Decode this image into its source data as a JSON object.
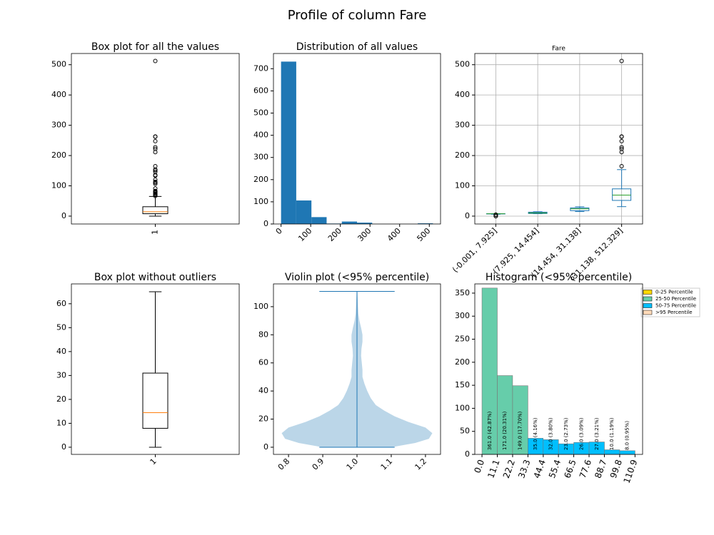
{
  "title": "Profile of column  Fare",
  "chart_data": [
    {
      "type": "box",
      "title": "Box plot for all the values",
      "categories": [
        "1"
      ],
      "boxes": [
        {
          "min": 0,
          "q1": 7.91,
          "median": 14.45,
          "q3": 31,
          "max": 65,
          "outliers": [
            512.3,
            263,
            262.4,
            247.5,
            227.5,
            221.8,
            211.3,
            164.9,
            153.5,
            151.6,
            146.5,
            135.6,
            133.7,
            120,
            113.3,
            110.9,
            106.4,
            91.1,
            83.2,
            82.2,
            79.6,
            78.3,
            77,
            76.7,
            73.5,
            71,
            69.6,
            66.6
          ]
        }
      ],
      "color": "#000000",
      "median_color": "#ff7f0e",
      "ylim": [
        -26,
        537
      ],
      "yticks": [
        0,
        100,
        200,
        300,
        400,
        500
      ],
      "grid": false
    },
    {
      "type": "histogram",
      "title": "Distribution of all values",
      "bins": [
        0,
        51.23,
        102.47,
        153.7,
        204.93,
        256.17,
        307.4,
        358.63,
        409.86,
        461.1,
        512.33
      ],
      "counts": [
        732,
        106,
        31,
        2,
        11,
        6,
        0,
        0,
        0,
        3
      ],
      "color": "#1f77b4",
      "xlim": [
        -25.6,
        537.9
      ],
      "xticks": [
        0,
        100,
        200,
        300,
        400,
        500
      ],
      "ylim": [
        0,
        768.6
      ],
      "yticks": [
        0,
        100,
        200,
        300,
        400,
        500,
        600,
        700
      ],
      "grid": false
    },
    {
      "type": "box",
      "title": "Fare",
      "categories": [
        "(-0.001, 7.925]",
        "(7.925, 14.454]",
        "(14.454, 31.138]",
        "(31.138, 512.329]"
      ],
      "boxes": [
        {
          "min": 6.24,
          "q1": 7.23,
          "median": 7.75,
          "q3": 7.9,
          "max": 7.925,
          "outliers": [
            0,
            0,
            4.01,
            5
          ]
        },
        {
          "min": 8.05,
          "q1": 8.66,
          "median": 10.5,
          "q3": 13,
          "max": 14.45,
          "outliers": []
        },
        {
          "min": 15,
          "q1": 18,
          "median": 24.15,
          "q3": 27,
          "max": 31,
          "outliers": []
        },
        {
          "min": 31.27,
          "q1": 51.86,
          "median": 69.3,
          "q3": 90,
          "max": 153.5,
          "outliers": [
            164.9,
            211.3,
            221.8,
            227.5,
            247.5,
            262.4,
            263,
            512.3
          ]
        }
      ],
      "color": "#1f77b4",
      "median_color": "#2ca02c",
      "ylim": [
        -26,
        537
      ],
      "yticks": [
        0,
        100,
        200,
        300,
        400,
        500
      ],
      "grid": true
    },
    {
      "type": "box",
      "title": "Box plot without outliers",
      "categories": [
        "1"
      ],
      "boxes": [
        {
          "min": 0,
          "q1": 7.91,
          "median": 14.45,
          "q3": 31,
          "max": 65,
          "outliers": []
        }
      ],
      "color": "#000000",
      "median_color": "#ff7f0e",
      "ylim": [
        -3,
        68.3
      ],
      "yticks": [
        0,
        10,
        20,
        30,
        40,
        50,
        60
      ],
      "grid": false
    },
    {
      "type": "violin",
      "title": "Violin plot (<95% percentile)",
      "violin": {
        "min": 0,
        "max": 110.9,
        "y": [
          0,
          3,
          6,
          10,
          14,
          18,
          22,
          26,
          30,
          35,
          40,
          45,
          50,
          55,
          60,
          65,
          70,
          75,
          80,
          85,
          90,
          95,
          100,
          105,
          110.9
        ],
        "width": [
          0.1,
          0.17,
          0.21,
          0.22,
          0.2,
          0.15,
          0.11,
          0.08,
          0.055,
          0.04,
          0.03,
          0.022,
          0.016,
          0.016,
          0.014,
          0.012,
          0.013,
          0.016,
          0.016,
          0.012,
          0.007,
          0.004,
          0.003,
          0.002,
          0.001
        ]
      },
      "color": "#1f77b4",
      "xlim": [
        0.756,
        1.244
      ],
      "xticks": [
        0.8,
        0.9,
        {
          "value": 1,
          "label": "1.0"
        },
        1.1,
        1.2
      ],
      "ylim": [
        -5.1,
        116.2
      ],
      "yticks": [
        0,
        20,
        40,
        60,
        80,
        100
      ],
      "grid": false
    },
    {
      "type": "histogram",
      "title": "Histogram (<95% percentile)",
      "bins": [
        0,
        11.09,
        22.18,
        33.27,
        44.36,
        55.45,
        66.54,
        77.63,
        88.72,
        99.81,
        110.9
      ],
      "counts": [
        361,
        171,
        149,
        35,
        32,
        23,
        26,
        27,
        10,
        8
      ],
      "value_labels": [
        "361.0  (42.87%)",
        "171.0  (20.31%)",
        "149.0  (17.70%)",
        "35.0  (4.16%)",
        "32.0  (3.80%)",
        "23.0  (2.73%)",
        "26.0  (3.09%)",
        "27.0  (3.21%)",
        "10.0  (1.19%)",
        "8.0  (0.95%)"
      ],
      "colors": [
        "#66cdaa",
        "#66cdaa",
        "#66cdaa",
        "#00bfff",
        "#00bfff",
        "#00bfff",
        "#00bfff",
        "#00bfff",
        "#00bfff",
        "#00bfff"
      ],
      "legend": [
        {
          "name": "0-25 Percentile",
          "color": "#ffd700"
        },
        {
          "name": "25-50 Percentile",
          "color": "#66cdaa"
        },
        {
          "name": "50-75 Percentile",
          "color": "#00bfff"
        },
        {
          "name": ">95 Percentile",
          "color": "#ffdab9"
        }
      ],
      "xlim": [
        -5.2,
        116.4
      ],
      "xticks": [
        {
          "value": 0,
          "label": "0.0"
        },
        11.1,
        22.2,
        33.3,
        44.4,
        55.4,
        66.5,
        77.6,
        88.7,
        99.8,
        110.9
      ],
      "ylim": [
        0,
        370
      ],
      "yticks": [
        0,
        50,
        100,
        150,
        200,
        250,
        300,
        350
      ],
      "grid": false
    }
  ]
}
